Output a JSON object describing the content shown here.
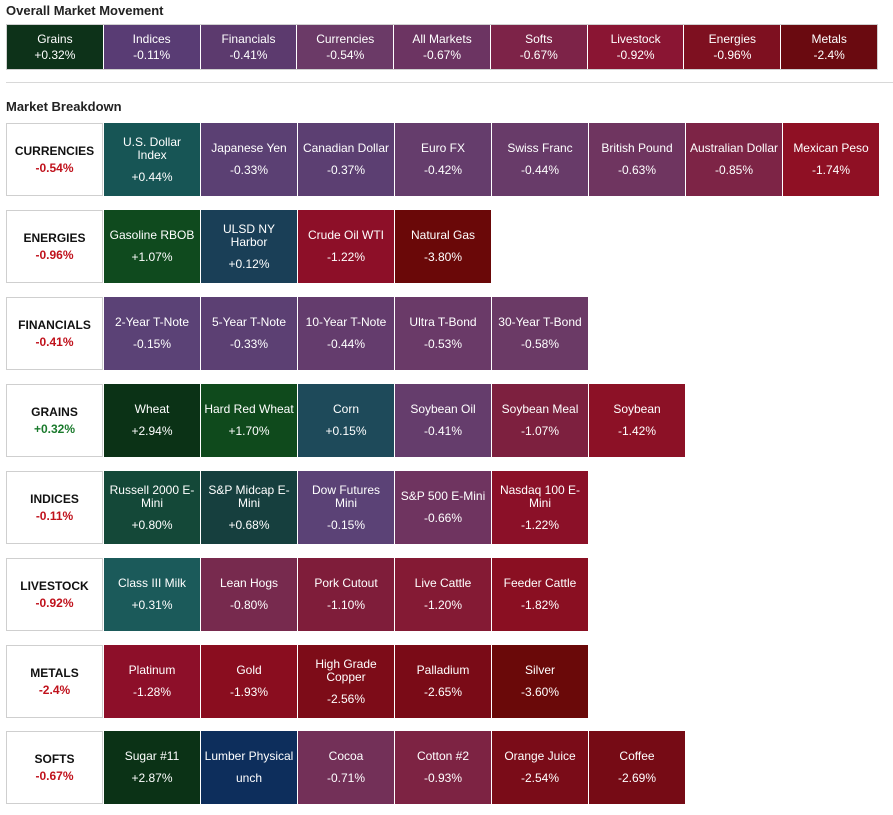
{
  "overall": {
    "title": "Overall Market Movement",
    "tiles": [
      {
        "name": "Grains",
        "value": "+0.32%",
        "color": "#0d3219"
      },
      {
        "name": "Indices",
        "value": "-0.11%",
        "color": "#593c74"
      },
      {
        "name": "Financials",
        "value": "-0.41%",
        "color": "#5c3a6e"
      },
      {
        "name": "Currencies",
        "value": "-0.54%",
        "color": "#6b3a67"
      },
      {
        "name": "All Markets",
        "value": "-0.67%",
        "color": "#6c3462"
      },
      {
        "name": "Softs",
        "value": "-0.67%",
        "color": "#7d2348"
      },
      {
        "name": "Livestock",
        "value": "-0.92%",
        "color": "#8a1533"
      },
      {
        "name": "Energies",
        "value": "-0.96%",
        "color": "#7e1020"
      },
      {
        "name": "Metals",
        "value": "-2.4%",
        "color": "#6a0a10"
      }
    ]
  },
  "breakdown": {
    "title": "Market Breakdown",
    "categories": [
      {
        "name": "CURRENCIES",
        "change": "-0.54%",
        "sign": "neg",
        "tiles": [
          {
            "name": "U.S. Dollar Index",
            "value": "+0.44%",
            "color": "#175555"
          },
          {
            "name": "Japanese Yen",
            "value": "-0.33%",
            "color": "#5b4073"
          },
          {
            "name": "Canadian Dollar",
            "value": "-0.37%",
            "color": "#5c3f72"
          },
          {
            "name": "Euro FX",
            "value": "-0.42%",
            "color": "#653d6c"
          },
          {
            "name": "Swiss Franc",
            "value": "-0.44%",
            "color": "#683b69"
          },
          {
            "name": "British Pound",
            "value": "-0.63%",
            "color": "#6f3560"
          },
          {
            "name": "Australian Dollar",
            "value": "-0.85%",
            "color": "#7d2446"
          },
          {
            "name": "Mexican Peso",
            "value": "-1.74%",
            "color": "#8f1024"
          }
        ]
      },
      {
        "name": "ENERGIES",
        "change": "-0.96%",
        "sign": "neg",
        "tiles": [
          {
            "name": "Gasoline RBOB",
            "value": "+1.07%",
            "color": "#0f4a1e"
          },
          {
            "name": "ULSD NY Harbor",
            "value": "+0.12%",
            "color": "#1a3f57"
          },
          {
            "name": "Crude Oil WTI",
            "value": "-1.22%",
            "color": "#8d0f28"
          },
          {
            "name": "Natural Gas",
            "value": "-3.80%",
            "color": "#6a0808"
          }
        ]
      },
      {
        "name": "FINANCIALS",
        "change": "-0.41%",
        "sign": "neg",
        "tiles": [
          {
            "name": "2-Year T-Note",
            "value": "-0.15%",
            "color": "#5b4276"
          },
          {
            "name": "5-Year T-Note",
            "value": "-0.33%",
            "color": "#5c4073"
          },
          {
            "name": "10-Year T-Note",
            "value": "-0.44%",
            "color": "#643c6d"
          },
          {
            "name": "Ultra T-Bond",
            "value": "-0.53%",
            "color": "#6a3a68"
          },
          {
            "name": "30-Year T-Bond",
            "value": "-0.58%",
            "color": "#6b3a66"
          }
        ]
      },
      {
        "name": "GRAINS",
        "change": "+0.32%",
        "sign": "pos",
        "tiles": [
          {
            "name": "Wheat",
            "value": "+2.94%",
            "color": "#0b3216"
          },
          {
            "name": "Hard Red Wheat",
            "value": "+1.70%",
            "color": "#0f4a1c"
          },
          {
            "name": "Corn",
            "value": "+0.15%",
            "color": "#1e4a5a"
          },
          {
            "name": "Soybean Oil",
            "value": "-0.41%",
            "color": "#653d6c"
          },
          {
            "name": "Soybean Meal",
            "value": "-1.07%",
            "color": "#7d203f"
          },
          {
            "name": "Soybean",
            "value": "-1.42%",
            "color": "#8c1126"
          }
        ]
      },
      {
        "name": "INDICES",
        "change": "-0.11%",
        "sign": "neg",
        "tiles": [
          {
            "name": "Russell 2000 E-Mini",
            "value": "+0.80%",
            "color": "#144838"
          },
          {
            "name": "S&P Midcap E-Mini",
            "value": "+0.68%",
            "color": "#163f3e"
          },
          {
            "name": "Dow Futures Mini",
            "value": "-0.15%",
            "color": "#5b4276"
          },
          {
            "name": "S&P 500 E-Mini",
            "value": "-0.66%",
            "color": "#6f3460"
          },
          {
            "name": "Nasdaq 100 E-Mini",
            "value": "-1.22%",
            "color": "#8b1028"
          }
        ]
      },
      {
        "name": "LIVESTOCK",
        "change": "-0.92%",
        "sign": "neg",
        "tiles": [
          {
            "name": "Class III Milk",
            "value": "+0.31%",
            "color": "#1b5a5a"
          },
          {
            "name": "Lean Hogs",
            "value": "-0.80%",
            "color": "#772a4e"
          },
          {
            "name": "Pork Cutout",
            "value": "-1.10%",
            "color": "#7f1d3a"
          },
          {
            "name": "Live Cattle",
            "value": "-1.20%",
            "color": "#841a34"
          },
          {
            "name": "Feeder Cattle",
            "value": "-1.82%",
            "color": "#8a0f22"
          }
        ]
      },
      {
        "name": "METALS",
        "change": "-2.4%",
        "sign": "neg",
        "tiles": [
          {
            "name": "Platinum",
            "value": "-1.28%",
            "color": "#8d0f29"
          },
          {
            "name": "Gold",
            "value": "-1.93%",
            "color": "#8a0d1f"
          },
          {
            "name": "High Grade Copper",
            "value": "-2.56%",
            "color": "#7d0c18"
          },
          {
            "name": "Palladium",
            "value": "-2.65%",
            "color": "#7a0b17"
          },
          {
            "name": "Silver",
            "value": "-3.60%",
            "color": "#6a0909"
          }
        ]
      },
      {
        "name": "SOFTS",
        "change": "-0.67%",
        "sign": "neg",
        "tiles": [
          {
            "name": "Sugar #11",
            "value": "+2.87%",
            "color": "#0b3216"
          },
          {
            "name": "Lumber Physical",
            "value": "unch",
            "color": "#0d2e5c"
          },
          {
            "name": "Cocoa",
            "value": "-0.71%",
            "color": "#733058"
          },
          {
            "name": "Cotton #2",
            "value": "-0.93%",
            "color": "#7d2343"
          },
          {
            "name": "Orange Juice",
            "value": "-2.54%",
            "color": "#7a0c18"
          },
          {
            "name": "Coffee",
            "value": "-2.69%",
            "color": "#760b15"
          }
        ]
      }
    ]
  }
}
